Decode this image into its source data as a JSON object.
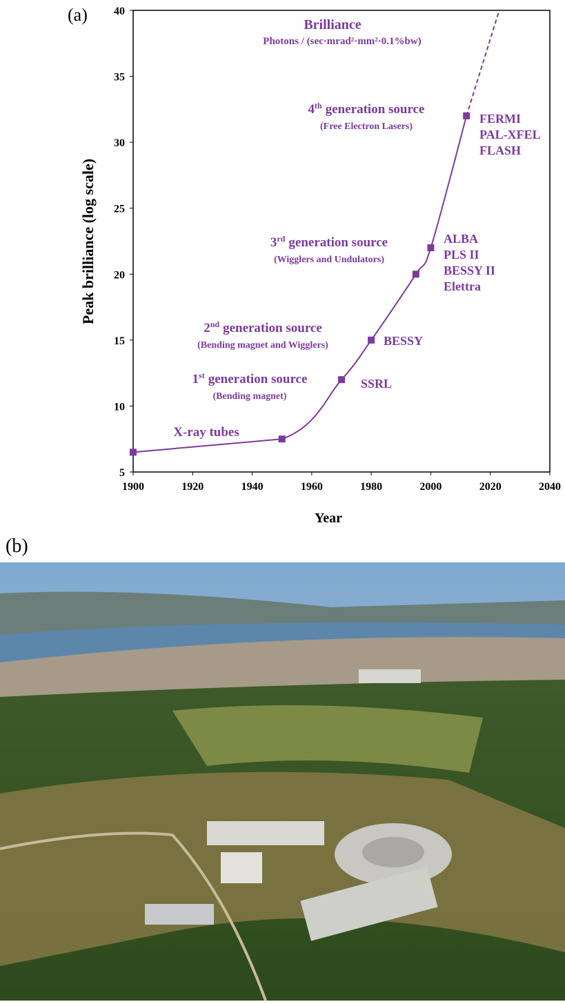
{
  "chart_data": {
    "type": "line",
    "panel_label": "(a)",
    "title": "Brilliance",
    "subtitle": "Photons / (sec·mrad²·mm²·0.1%bw)",
    "x_label": "Year",
    "y_label": "Peak brilliance (log scale)",
    "color": "#7b3a9c",
    "x": [
      1900,
      1950,
      1970,
      1980,
      1995,
      2000,
      2012
    ],
    "values": [
      6.5,
      7.5,
      12,
      15,
      20,
      22,
      32
    ],
    "projection": {
      "x": [
        2012,
        2023
      ],
      "values": [
        32,
        40
      ]
    },
    "xlim": [
      1900,
      2040
    ],
    "xticks": [
      1900,
      1920,
      1940,
      1960,
      1980,
      2000,
      2020,
      2040
    ],
    "ylim": [
      5,
      40
    ],
    "yticks": [
      5,
      10,
      15,
      20,
      25,
      30,
      35,
      40
    ],
    "annotations": [
      {
        "text": "X-ray tubes"
      },
      {
        "text": "1",
        "sup": "st",
        "tail": "generation source",
        "note": "(Bending magnet)"
      },
      {
        "text": "2",
        "sup": "nd",
        "tail": "generation source",
        "note": "(Bending magnet and Wigglers)"
      },
      {
        "text": "3",
        "sup": "rd",
        "tail": "generation source",
        "note": "(Wigglers and Undulators)"
      },
      {
        "text": "4",
        "sup": "th",
        "tail": "generation source",
        "note": "(Free Electron Lasers)"
      }
    ],
    "point_labels": [
      [
        "SSRL"
      ],
      [
        "BESSY"
      ],
      [
        "ALBA",
        "PLS II",
        "BESSY II",
        "Elettra"
      ],
      [
        "FERMI",
        "PAL-XFEL",
        "FLASH"
      ]
    ]
  },
  "photo": {
    "panel_label": "(b)"
  }
}
